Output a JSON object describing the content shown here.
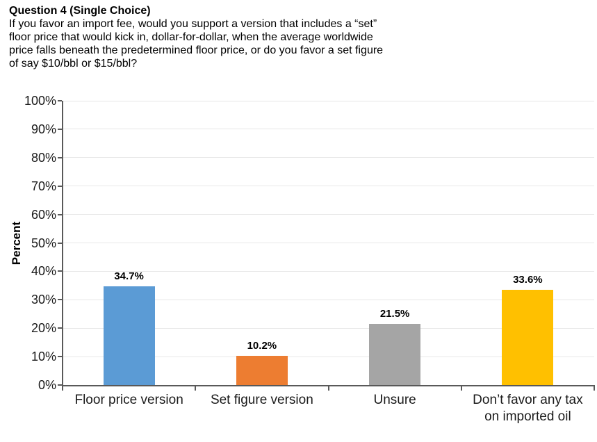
{
  "header": {
    "title": "Question 4 (Single Choice)",
    "question_lines": [
      "If you favor an import fee, would you support a version that includes a “set”",
      "floor price that would kick in, dollar-for-dollar, when the average worldwide",
      "price falls beneath the predetermined floor price, or do you favor a set figure",
      "of say $10/bbl or $15/bbl?"
    ]
  },
  "chart_data": {
    "type": "bar",
    "title": "",
    "xlabel": "",
    "ylabel": "Percent",
    "ylim": [
      0,
      100
    ],
    "ytick_step": 10,
    "ytick_labels": [
      "0%",
      "10%",
      "20%",
      "30%",
      "40%",
      "50%",
      "60%",
      "70%",
      "80%",
      "90%",
      "100%"
    ],
    "grid": true,
    "legend": false,
    "categories": [
      "Floor price version",
      "Set figure version",
      "Unsure",
      "Don’t favor any tax on imported oil"
    ],
    "category_lines": [
      [
        "Floor price version"
      ],
      [
        "Set figure version"
      ],
      [
        "Unsure"
      ],
      [
        "Don’t favor any tax",
        "on imported oil"
      ]
    ],
    "values": [
      34.7,
      10.2,
      21.5,
      33.6
    ],
    "value_labels": [
      "34.7%",
      "10.2%",
      "21.5%",
      "33.6%"
    ],
    "bar_colors": [
      "#5B9BD5",
      "#ED7D31",
      "#A5A5A5",
      "#FFC000"
    ]
  },
  "colors": {
    "axis": "#595959",
    "gridline": "#E7E7E7",
    "text": "#1A1A1A",
    "background": "#FFFFFF"
  }
}
